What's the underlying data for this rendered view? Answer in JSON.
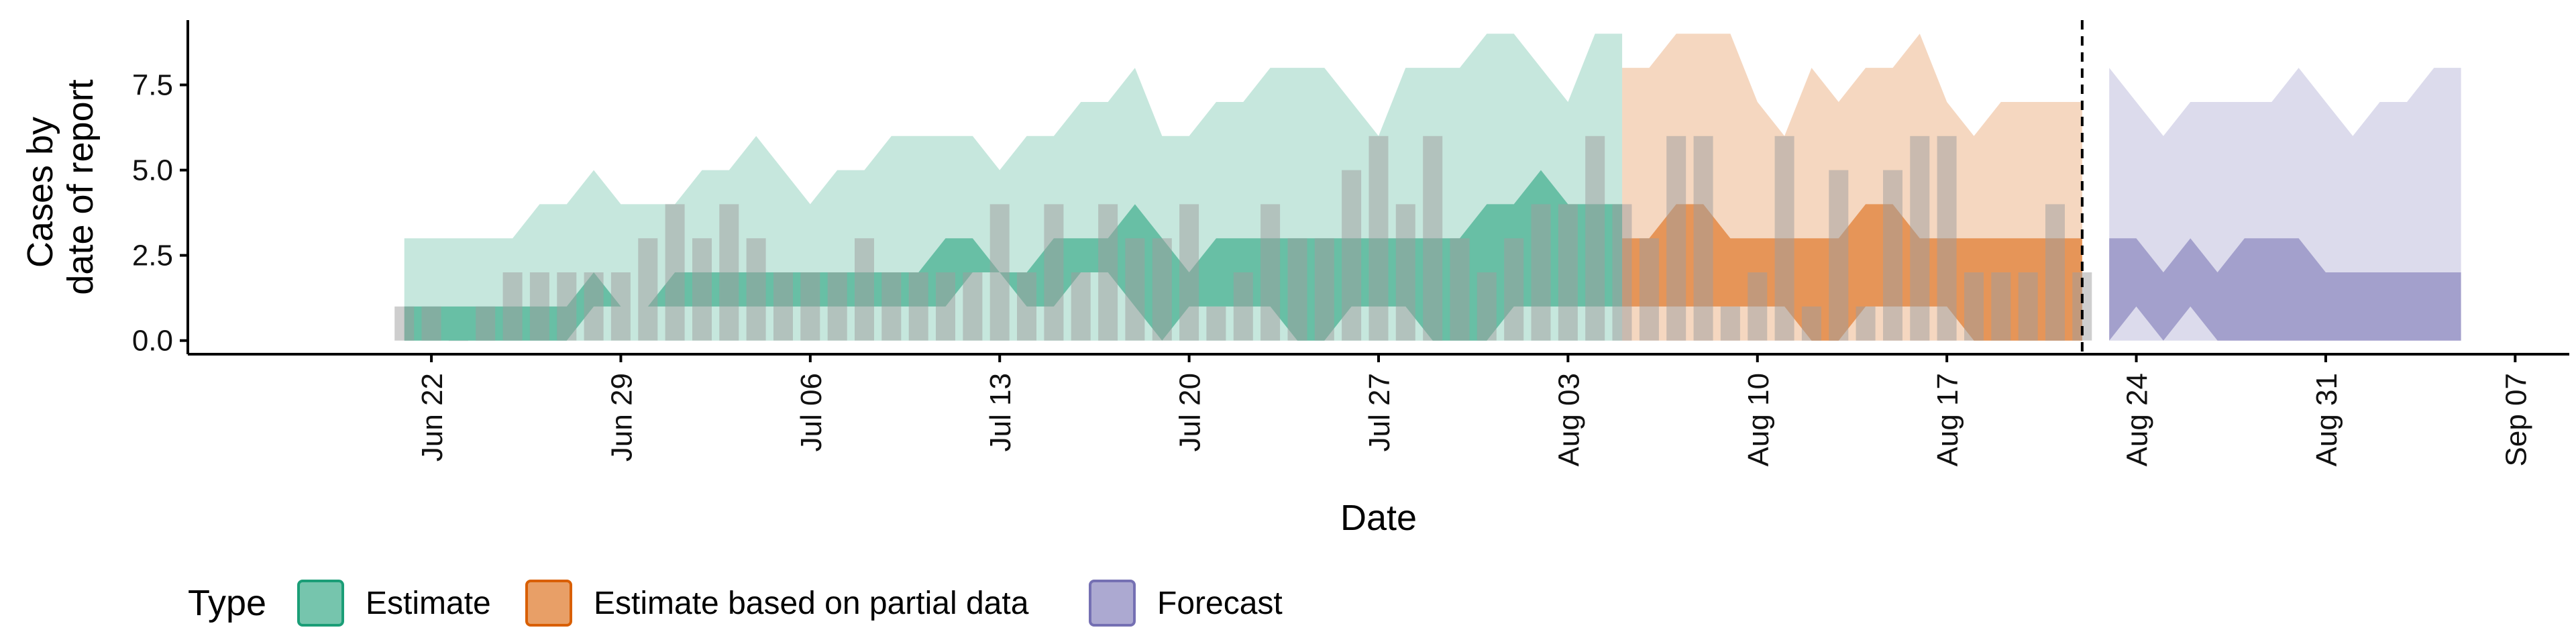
{
  "chart_data": {
    "type": "area",
    "xlabel": "Date",
    "ylabel_lines": [
      "Cases by",
      "date of report"
    ],
    "yticks": [
      "0.0",
      "2.5",
      "5.0",
      "7.5"
    ],
    "ylim": [
      -0.4,
      9.4
    ],
    "xlim": [
      "2020-06-13",
      "2020-09-09"
    ],
    "xticks": [
      {
        "date": "2020-06-22",
        "label": "Jun 22"
      },
      {
        "date": "2020-06-29",
        "label": "Jun 29"
      },
      {
        "date": "2020-07-06",
        "label": "Jul 06"
      },
      {
        "date": "2020-07-13",
        "label": "Jul 13"
      },
      {
        "date": "2020-07-20",
        "label": "Jul 20"
      },
      {
        "date": "2020-07-27",
        "label": "Jul 27"
      },
      {
        "date": "2020-08-03",
        "label": "Aug 03"
      },
      {
        "date": "2020-08-10",
        "label": "Aug 10"
      },
      {
        "date": "2020-08-17",
        "label": "Aug 17"
      },
      {
        "date": "2020-08-24",
        "label": "Aug 24"
      },
      {
        "date": "2020-08-31",
        "label": "Aug 31"
      },
      {
        "date": "2020-09-07",
        "label": "Sep 07"
      }
    ],
    "cutoff_date": "2020-08-22",
    "legend": {
      "title": "Type",
      "items": [
        {
          "label": "Estimate",
          "color": "#1b9e77"
        },
        {
          "label": "Estimate based on partial data",
          "color": "#d95f02"
        },
        {
          "label": "Forecast",
          "color": "#7570b3"
        }
      ]
    },
    "bar_color": "#9e9e9e",
    "reported_cases": {
      "start_date": "2020-06-21",
      "values": [
        1,
        1,
        0,
        1,
        2,
        2,
        2,
        2,
        2,
        3,
        4,
        3,
        4,
        3,
        2,
        2,
        2,
        3,
        2,
        2,
        2,
        2,
        4,
        2,
        4,
        2,
        4,
        3,
        3,
        4,
        1,
        2,
        4,
        3,
        3,
        5,
        6,
        4,
        6,
        3,
        2,
        3,
        4,
        4,
        6,
        4,
        3,
        6,
        6,
        1,
        2,
        6,
        1,
        5,
        1,
        5,
        6,
        6,
        2,
        2,
        2,
        4,
        2
      ]
    },
    "series": [
      {
        "name": "Estimate",
        "color": "#1b9e77",
        "start_date": "2020-06-21",
        "outer_lower": [
          0,
          0,
          0,
          0,
          0,
          0,
          0,
          0,
          0,
          0,
          0,
          0,
          0,
          0,
          0,
          0,
          0,
          0,
          0,
          0,
          0,
          0,
          0,
          0,
          0,
          0,
          0,
          0,
          0,
          0,
          0,
          0,
          0,
          0,
          0,
          0,
          0,
          0,
          0,
          0,
          0,
          0,
          0,
          0,
          0,
          0
        ],
        "outer_upper": [
          3,
          3,
          3,
          3,
          3,
          4,
          4,
          5,
          4,
          4,
          4,
          5,
          5,
          6,
          5,
          4,
          5,
          5,
          6,
          6,
          6,
          6,
          5,
          6,
          6,
          7,
          7,
          8,
          6,
          6,
          7,
          7,
          8,
          8,
          8,
          7,
          6,
          8,
          8,
          8,
          9,
          9,
          8,
          7,
          9,
          9
        ],
        "inner_lower": [
          0,
          0,
          0,
          0,
          0,
          0,
          0,
          1,
          1,
          1,
          1,
          1,
          1,
          1,
          1,
          1,
          1,
          1,
          1,
          1,
          1,
          2,
          2,
          1,
          1,
          2,
          2,
          1,
          0,
          1,
          1,
          1,
          1,
          0,
          0,
          1,
          1,
          1,
          0,
          0,
          0,
          1,
          1,
          1,
          1,
          1
        ],
        "inner_upper": [
          1,
          1,
          1,
          1,
          1,
          1,
          1,
          2,
          1,
          1,
          2,
          2,
          2,
          2,
          2,
          2,
          2,
          2,
          2,
          2,
          3,
          3,
          2,
          2,
          3,
          3,
          3,
          4,
          3,
          2,
          3,
          3,
          3,
          3,
          3,
          3,
          3,
          3,
          3,
          3,
          4,
          4,
          5,
          4,
          4,
          4
        ]
      },
      {
        "name": "Estimate based on partial data",
        "color": "#d95f02",
        "start_date": "2020-08-05",
        "outer_lower": [
          0,
          0,
          0,
          0,
          0,
          0,
          0,
          0,
          0,
          0,
          0,
          0,
          0,
          0,
          0,
          0,
          0,
          0
        ],
        "outer_upper": [
          8,
          8,
          9,
          9,
          9,
          7,
          6,
          8,
          7,
          8,
          8,
          9,
          7,
          6,
          7,
          7,
          7,
          7
        ],
        "inner_lower": [
          1,
          1,
          1,
          1,
          1,
          1,
          1,
          0,
          0,
          1,
          1,
          1,
          1,
          0,
          0,
          0,
          0,
          0
        ],
        "inner_upper": [
          3,
          3,
          4,
          4,
          3,
          3,
          3,
          3,
          3,
          4,
          4,
          3,
          3,
          3,
          3,
          3,
          3,
          3
        ]
      },
      {
        "name": "Forecast",
        "color": "#7570b3",
        "start_date": "2020-08-23",
        "outer_lower": [
          0,
          0,
          0,
          0,
          0,
          0,
          0,
          0,
          0,
          0,
          0,
          0,
          0,
          0
        ],
        "outer_upper": [
          8,
          7,
          6,
          7,
          7,
          7,
          7,
          8,
          7,
          6,
          7,
          7,
          8,
          8
        ],
        "inner_lower": [
          0,
          1,
          0,
          1,
          0,
          0,
          0,
          0,
          0,
          0,
          0,
          0,
          0,
          0
        ],
        "inner_upper": [
          3,
          3,
          2,
          3,
          2,
          3,
          3,
          3,
          2,
          2,
          2,
          2,
          2,
          2
        ]
      }
    ]
  }
}
